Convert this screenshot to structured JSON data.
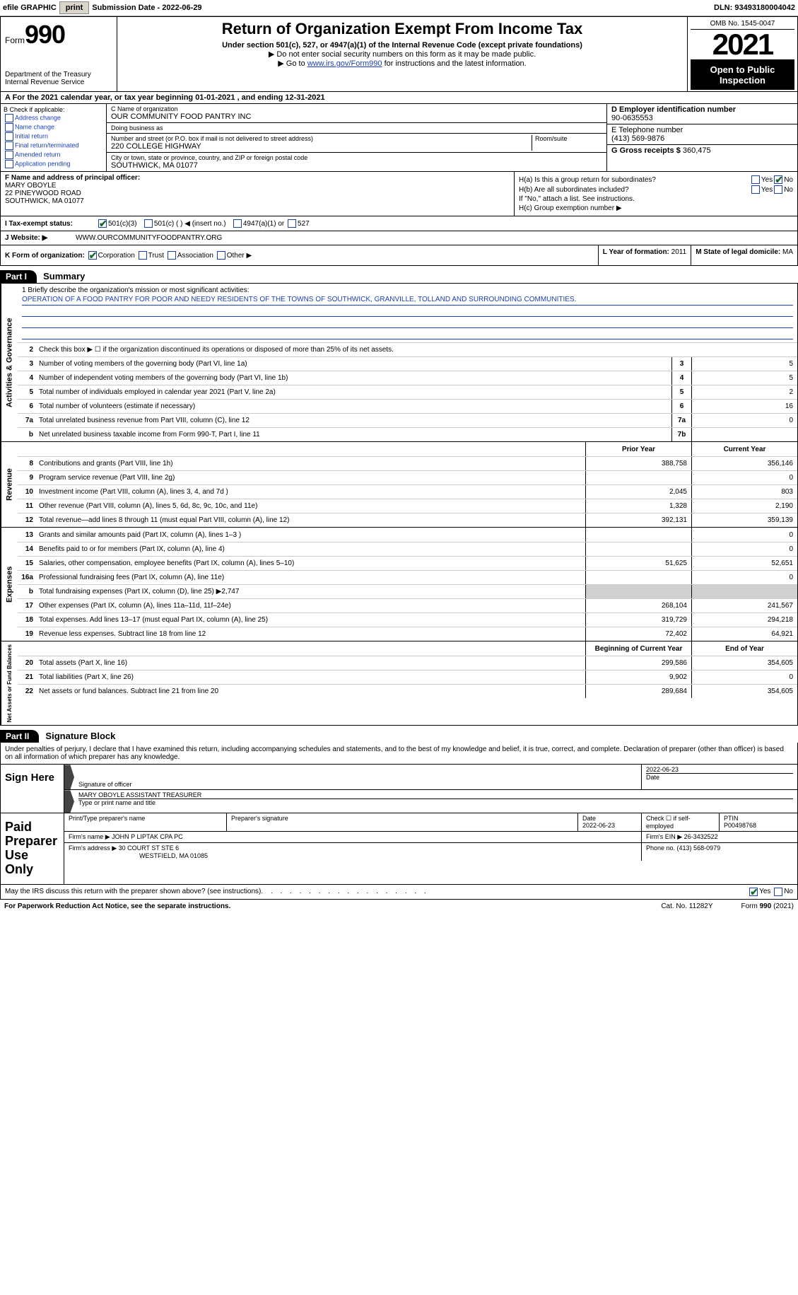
{
  "topbar": {
    "efile_label": "efile GRAPHIC",
    "print_btn": "print",
    "sub_date_lbl": "Submission Date - ",
    "sub_date": "2022-06-29",
    "dln_lbl": "DLN: ",
    "dln": "93493180004042"
  },
  "header": {
    "form_word": "Form",
    "form_num": "990",
    "dept": "Department of the Treasury\nInternal Revenue Service",
    "title": "Return of Organization Exempt From Income Tax",
    "sub1": "Under section 501(c), 527, or 4947(a)(1) of the Internal Revenue Code (except private foundations)",
    "sub2": "▶ Do not enter social security numbers on this form as it may be made public.",
    "sub3_pre": "▶ Go to ",
    "sub3_link": "www.irs.gov/Form990",
    "sub3_post": " for instructions and the latest information.",
    "omb": "OMB No. 1545-0047",
    "year": "2021",
    "open": "Open to Public Inspection"
  },
  "row_a": "A For the 2021 calendar year, or tax year beginning 01-01-2021    , and ending 12-31-2021",
  "col_b": {
    "hd": "B Check if applicable:",
    "opts": [
      "Address change",
      "Name change",
      "Initial return",
      "Final return/terminated",
      "Amended return",
      "Application pending"
    ]
  },
  "col_c": {
    "name_lbl": "C Name of organization",
    "name": "OUR COMMUNITY FOOD PANTRY INC",
    "dba_lbl": "Doing business as",
    "dba": "",
    "street_lbl": "Number and street (or P.O. box if mail is not delivered to street address)",
    "room_lbl": "Room/suite",
    "street": "220 COLLEGE HIGHWAY",
    "city_lbl": "City or town, state or province, country, and ZIP or foreign postal code",
    "city": "SOUTHWICK, MA  01077"
  },
  "col_de": {
    "d_lbl": "D Employer identification number",
    "d_val": "90-0635553",
    "e_lbl": "E Telephone number",
    "e_val": "(413) 569-9876",
    "g_lbl": "G Gross receipts $ ",
    "g_val": "360,475"
  },
  "col_f": {
    "lbl": "F Name and address of principal officer:",
    "name": "MARY OBOYLE",
    "addr1": "22 PINEYWOOD ROAD",
    "addr2": "SOUTHWICK, MA  01077"
  },
  "col_h": {
    "ha": "H(a)  Is this a group return for subordinates?",
    "hb": "H(b)  Are all subordinates included?",
    "hb_note": "If \"No,\" attach a list. See instructions.",
    "hc": "H(c)  Group exemption number ▶",
    "yes": "Yes",
    "no": "No"
  },
  "row_i": {
    "lbl": "I  Tax-exempt status:",
    "o1": "501(c)(3)",
    "o2": "501(c) (   ) ◀ (insert no.)",
    "o3": "4947(a)(1) or",
    "o4": "527"
  },
  "row_j": {
    "lbl": "J  Website: ▶",
    "val": "WWW.OURCOMMUNITYFOODPANTRY.ORG"
  },
  "row_k": {
    "lbl": "K Form of organization:",
    "o1": "Corporation",
    "o2": "Trust",
    "o3": "Association",
    "o4": "Other ▶",
    "l_lbl": "L Year of formation: ",
    "l_val": "2011",
    "m_lbl": "M State of legal domicile: ",
    "m_val": "MA"
  },
  "parts": {
    "p1": "Part I",
    "p1_title": "Summary",
    "p2": "Part II",
    "p2_title": "Signature Block"
  },
  "summary": {
    "briefly_lbl": "1  Briefly describe the organization's mission or most significant activities:",
    "briefly": "OPERATION OF A FOOD PANTRY FOR POOR AND NEEDY RESIDENTS OF THE TOWNS OF SOUTHWICK, GRANVILLE, TOLLAND AND SURROUNDING COMMUNITIES.",
    "line2": "Check this box ▶ ☐ if the organization discontinued its operations or disposed of more than 25% of its net assets.",
    "tabs": {
      "ag": "Activities & Governance",
      "rev": "Revenue",
      "exp": "Expenses",
      "na": "Net Assets or Fund Balances"
    },
    "hdr_prior": "Prior Year",
    "hdr_curr": "Current Year",
    "hdr_bcy": "Beginning of Current Year",
    "hdr_eoy": "End of Year",
    "lines_ag": [
      {
        "n": "3",
        "d": "Number of voting members of the governing body (Part VI, line 1a)",
        "b": "3",
        "v": "5"
      },
      {
        "n": "4",
        "d": "Number of independent voting members of the governing body (Part VI, line 1b)",
        "b": "4",
        "v": "5"
      },
      {
        "n": "5",
        "d": "Total number of individuals employed in calendar year 2021 (Part V, line 2a)",
        "b": "5",
        "v": "2"
      },
      {
        "n": "6",
        "d": "Total number of volunteers (estimate if necessary)",
        "b": "6",
        "v": "16"
      },
      {
        "n": "7a",
        "d": "Total unrelated business revenue from Part VIII, column (C), line 12",
        "b": "7a",
        "v": "0"
      },
      {
        "n": "b",
        "d": "Net unrelated business taxable income from Form 990-T, Part I, line 11",
        "b": "7b",
        "v": ""
      }
    ],
    "lines_rev": [
      {
        "n": "8",
        "d": "Contributions and grants (Part VIII, line 1h)",
        "p": "388,758",
        "c": "356,146"
      },
      {
        "n": "9",
        "d": "Program service revenue (Part VIII, line 2g)",
        "p": "",
        "c": "0"
      },
      {
        "n": "10",
        "d": "Investment income (Part VIII, column (A), lines 3, 4, and 7d )",
        "p": "2,045",
        "c": "803"
      },
      {
        "n": "11",
        "d": "Other revenue (Part VIII, column (A), lines 5, 6d, 8c, 9c, 10c, and 11e)",
        "p": "1,328",
        "c": "2,190"
      },
      {
        "n": "12",
        "d": "Total revenue—add lines 8 through 11 (must equal Part VIII, column (A), line 12)",
        "p": "392,131",
        "c": "359,139"
      }
    ],
    "lines_exp": [
      {
        "n": "13",
        "d": "Grants and similar amounts paid (Part IX, column (A), lines 1–3 )",
        "p": "",
        "c": "0"
      },
      {
        "n": "14",
        "d": "Benefits paid to or for members (Part IX, column (A), line 4)",
        "p": "",
        "c": "0"
      },
      {
        "n": "15",
        "d": "Salaries, other compensation, employee benefits (Part IX, column (A), lines 5–10)",
        "p": "51,625",
        "c": "52,651"
      },
      {
        "n": "16a",
        "d": "Professional fundraising fees (Part IX, column (A), line 11e)",
        "p": "",
        "c": "0"
      },
      {
        "n": "b",
        "d": "Total fundraising expenses (Part IX, column (D), line 25) ▶2,747",
        "p": "SHADED",
        "c": "SHADED"
      },
      {
        "n": "17",
        "d": "Other expenses (Part IX, column (A), lines 11a–11d, 11f–24e)",
        "p": "268,104",
        "c": "241,567"
      },
      {
        "n": "18",
        "d": "Total expenses. Add lines 13–17 (must equal Part IX, column (A), line 25)",
        "p": "319,729",
        "c": "294,218"
      },
      {
        "n": "19",
        "d": "Revenue less expenses. Subtract line 18 from line 12",
        "p": "72,402",
        "c": "64,921"
      }
    ],
    "lines_na": [
      {
        "n": "20",
        "d": "Total assets (Part X, line 16)",
        "p": "299,586",
        "c": "354,605"
      },
      {
        "n": "21",
        "d": "Total liabilities (Part X, line 26)",
        "p": "9,902",
        "c": "0"
      },
      {
        "n": "22",
        "d": "Net assets or fund balances. Subtract line 21 from line 20",
        "p": "289,684",
        "c": "354,605"
      }
    ]
  },
  "sig": {
    "intro": "Under penalties of perjury, I declare that I have examined this return, including accompanying schedules and statements, and to the best of my knowledge and belief, it is true, correct, and complete. Declaration of preparer (other than officer) is based on all information of which preparer has any knowledge.",
    "sign_here": "Sign Here",
    "sig_officer_lbl": "Signature of officer",
    "sig_date": "2022-06-23",
    "sig_date_lbl": "Date",
    "typed_name": "MARY OBOYLE  ASSISTANT TREASURER",
    "typed_lbl": "Type or print name and title",
    "ppu": "Paid Preparer Use Only",
    "prep_name_lbl": "Print/Type preparer's name",
    "prep_sig_lbl": "Preparer's signature",
    "prep_date_lbl": "Date",
    "prep_date": "2022-06-23",
    "self_emp": "Check ☐ if self-employed",
    "ptin_lbl": "PTIN",
    "ptin": "P00498768",
    "firm_name_lbl": "Firm's name     ▶ ",
    "firm_name": "JOHN P LIPTAK CPA PC",
    "firm_ein_lbl": "Firm's EIN ▶ ",
    "firm_ein": "26-3432522",
    "firm_addr_lbl": "Firm's address ▶ ",
    "firm_addr": "30 COURT ST STE 6",
    "firm_city": "WESTFIELD, MA  01085",
    "phone_lbl": "Phone no. ",
    "phone": "(413) 568-0979",
    "discuss": "May the IRS discuss this return with the preparer shown above? (see instructions)"
  },
  "footer": {
    "pra": "For Paperwork Reduction Act Notice, see the separate instructions.",
    "cat": "Cat. No. 11282Y",
    "form": "Form 990 (2021)"
  }
}
